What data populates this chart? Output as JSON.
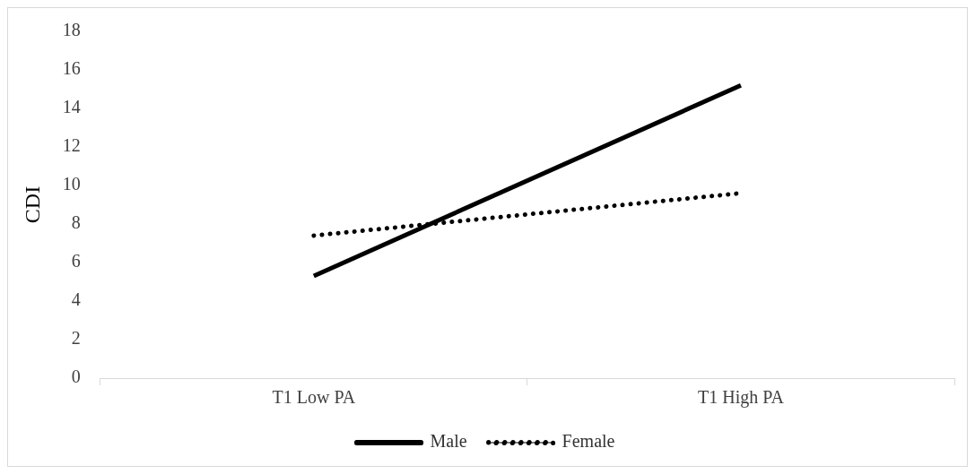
{
  "chart_data": {
    "type": "line",
    "ylabel": "CDI",
    "categories": [
      "T1 Low PA",
      "T1 High PA"
    ],
    "series": [
      {
        "name": "Male",
        "color": "#000000",
        "values": [
          5.3,
          15.2
        ],
        "line_style": "solid"
      },
      {
        "name": "Female",
        "color": "#000000",
        "values": [
          7.4,
          9.6
        ],
        "line_style": "dotted"
      }
    ],
    "ylim": [
      0,
      18
    ],
    "yticks": [
      0,
      2,
      4,
      6,
      8,
      10,
      12,
      14,
      16,
      18
    ],
    "grid": false,
    "legend": "bottom",
    "marker": "none"
  }
}
